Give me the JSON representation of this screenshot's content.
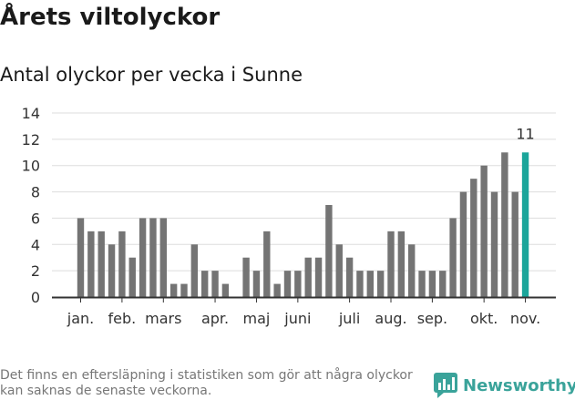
{
  "header": {
    "title": "Årets viltolyckor",
    "subtitle": "Antal olyckor per vecka i Sunne"
  },
  "footer": {
    "note": "Det finns en eftersläpning i statistiken som gör att några olyckor kan saknas de senaste veckorna.",
    "brand": "Newsworthy"
  },
  "colors": {
    "bar": "#747474",
    "highlight": "#1aa59a",
    "grid": "#dddddd",
    "axis": "#333333",
    "text": "#333333",
    "brand": "#3aa39a"
  },
  "chart_data": {
    "type": "bar",
    "title": "Antal olyckor per vecka i Sunne",
    "xlabel": "",
    "ylabel": "",
    "ylim": [
      0,
      14
    ],
    "yticks": [
      0,
      2,
      4,
      6,
      8,
      10,
      12,
      14
    ],
    "grid": true,
    "values": [
      6,
      5,
      5,
      4,
      5,
      3,
      6,
      6,
      6,
      1,
      1,
      4,
      2,
      2,
      1,
      0,
      3,
      2,
      5,
      1,
      2,
      2,
      3,
      3,
      7,
      4,
      3,
      2,
      2,
      2,
      5,
      5,
      4,
      2,
      2,
      2,
      6,
      8,
      9,
      10,
      8,
      11,
      8,
      11
    ],
    "highlight_index": 43,
    "highlight_label": "11",
    "month_ticks": [
      {
        "label": "jan.",
        "index": 0
      },
      {
        "label": "feb.",
        "index": 4
      },
      {
        "label": "mars",
        "index": 8
      },
      {
        "label": "apr.",
        "index": 13
      },
      {
        "label": "maj",
        "index": 17
      },
      {
        "label": "juni",
        "index": 21
      },
      {
        "label": "juli",
        "index": 26
      },
      {
        "label": "aug.",
        "index": 30
      },
      {
        "label": "sep.",
        "index": 34
      },
      {
        "label": "okt.",
        "index": 39
      },
      {
        "label": "nov.",
        "index": 43
      }
    ]
  }
}
